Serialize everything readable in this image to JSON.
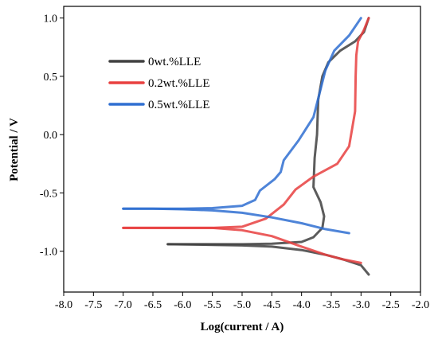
{
  "chart_data": {
    "type": "line",
    "title": "",
    "xlabel": "Log(current / A)",
    "ylabel": "Potential / V",
    "xlim": [
      -8.0,
      -2.0
    ],
    "ylim": [
      -1.35,
      1.1
    ],
    "x_ticks": [
      "-8.0",
      "-7.5",
      "-7.0",
      "-6.5",
      "-6.0",
      "-5.5",
      "-5.0",
      "-4.5",
      "-4.0",
      "-3.5",
      "-3.0",
      "-2.5",
      "-2.0"
    ],
    "y_ticks": [
      "1.0",
      "0.5",
      "0.0",
      "-0.5",
      "-1.0"
    ],
    "grid": false,
    "legend_position": "top-left",
    "series": [
      {
        "name": "0wt.%LLE",
        "color": "#404040",
        "points": [
          [
            -6.25,
            -0.94
          ],
          [
            -5.5,
            -0.94
          ],
          [
            -5.0,
            -0.94
          ],
          [
            -4.5,
            -0.935
          ],
          [
            -4.0,
            -0.92
          ],
          [
            -3.8,
            -0.88
          ],
          [
            -3.65,
            -0.8
          ],
          [
            -3.62,
            -0.7
          ],
          [
            -3.68,
            -0.58
          ],
          [
            -3.8,
            -0.45
          ],
          [
            -3.78,
            -0.2
          ],
          [
            -3.74,
            0.0
          ],
          [
            -3.72,
            0.3
          ],
          [
            -3.65,
            0.5
          ],
          [
            -3.55,
            0.62
          ],
          [
            -3.35,
            0.72
          ],
          [
            -3.1,
            0.8
          ],
          [
            -2.95,
            0.88
          ],
          [
            -2.87,
            1.0
          ]
        ]
      },
      {
        "name": "0.2wt.%LLE",
        "color": "#e8403f",
        "points": [
          [
            -7.0,
            -0.8
          ],
          [
            -6.5,
            -0.8
          ],
          [
            -6.0,
            -0.8
          ],
          [
            -5.5,
            -0.8
          ],
          [
            -5.0,
            -0.79
          ],
          [
            -4.6,
            -0.72
          ],
          [
            -4.3,
            -0.6
          ],
          [
            -4.1,
            -0.47
          ],
          [
            -3.8,
            -0.36
          ],
          [
            -3.4,
            -0.25
          ],
          [
            -3.2,
            -0.1
          ],
          [
            -3.1,
            0.2
          ],
          [
            -3.09,
            0.5
          ],
          [
            -3.08,
            0.68
          ],
          [
            -3.05,
            0.8
          ],
          [
            -2.95,
            0.9
          ],
          [
            -2.87,
            1.0
          ]
        ]
      },
      {
        "name": "0.5wt.%LLE",
        "color": "#2f6fd1",
        "points": [
          [
            -7.0,
            -0.635
          ],
          [
            -6.5,
            -0.635
          ],
          [
            -6.0,
            -0.635
          ],
          [
            -5.5,
            -0.63
          ],
          [
            -5.0,
            -0.61
          ],
          [
            -4.78,
            -0.56
          ],
          [
            -4.7,
            -0.48
          ],
          [
            -4.45,
            -0.38
          ],
          [
            -4.35,
            -0.32
          ],
          [
            -4.3,
            -0.22
          ],
          [
            -4.05,
            -0.05
          ],
          [
            -3.8,
            0.15
          ],
          [
            -3.7,
            0.35
          ],
          [
            -3.6,
            0.55
          ],
          [
            -3.45,
            0.72
          ],
          [
            -3.2,
            0.85
          ],
          [
            -3.0,
            1.0
          ]
        ]
      },
      {
        "name": "",
        "color": "#404040",
        "points": [
          [
            -6.25,
            -0.94
          ],
          [
            -5.5,
            -0.945
          ],
          [
            -5.0,
            -0.95
          ],
          [
            -4.5,
            -0.96
          ],
          [
            -4.0,
            -0.99
          ],
          [
            -3.6,
            -1.03
          ],
          [
            -3.3,
            -1.07
          ],
          [
            -3.0,
            -1.12
          ],
          [
            -2.87,
            -1.2
          ]
        ]
      },
      {
        "name": "",
        "color": "#e8403f",
        "points": [
          [
            -7.0,
            -0.8
          ],
          [
            -6.5,
            -0.8
          ],
          [
            -6.0,
            -0.8
          ],
          [
            -5.5,
            -0.8
          ],
          [
            -5.0,
            -0.82
          ],
          [
            -4.5,
            -0.87
          ],
          [
            -4.0,
            -0.96
          ],
          [
            -3.6,
            -1.03
          ],
          [
            -3.3,
            -1.07
          ],
          [
            -3.0,
            -1.1
          ]
        ]
      },
      {
        "name": "",
        "color": "#2f6fd1",
        "points": [
          [
            -7.0,
            -0.635
          ],
          [
            -6.5,
            -0.635
          ],
          [
            -6.0,
            -0.64
          ],
          [
            -5.5,
            -0.65
          ],
          [
            -5.0,
            -0.67
          ],
          [
            -4.5,
            -0.71
          ],
          [
            -4.0,
            -0.76
          ],
          [
            -3.6,
            -0.81
          ],
          [
            -3.2,
            -0.845
          ]
        ]
      }
    ]
  }
}
